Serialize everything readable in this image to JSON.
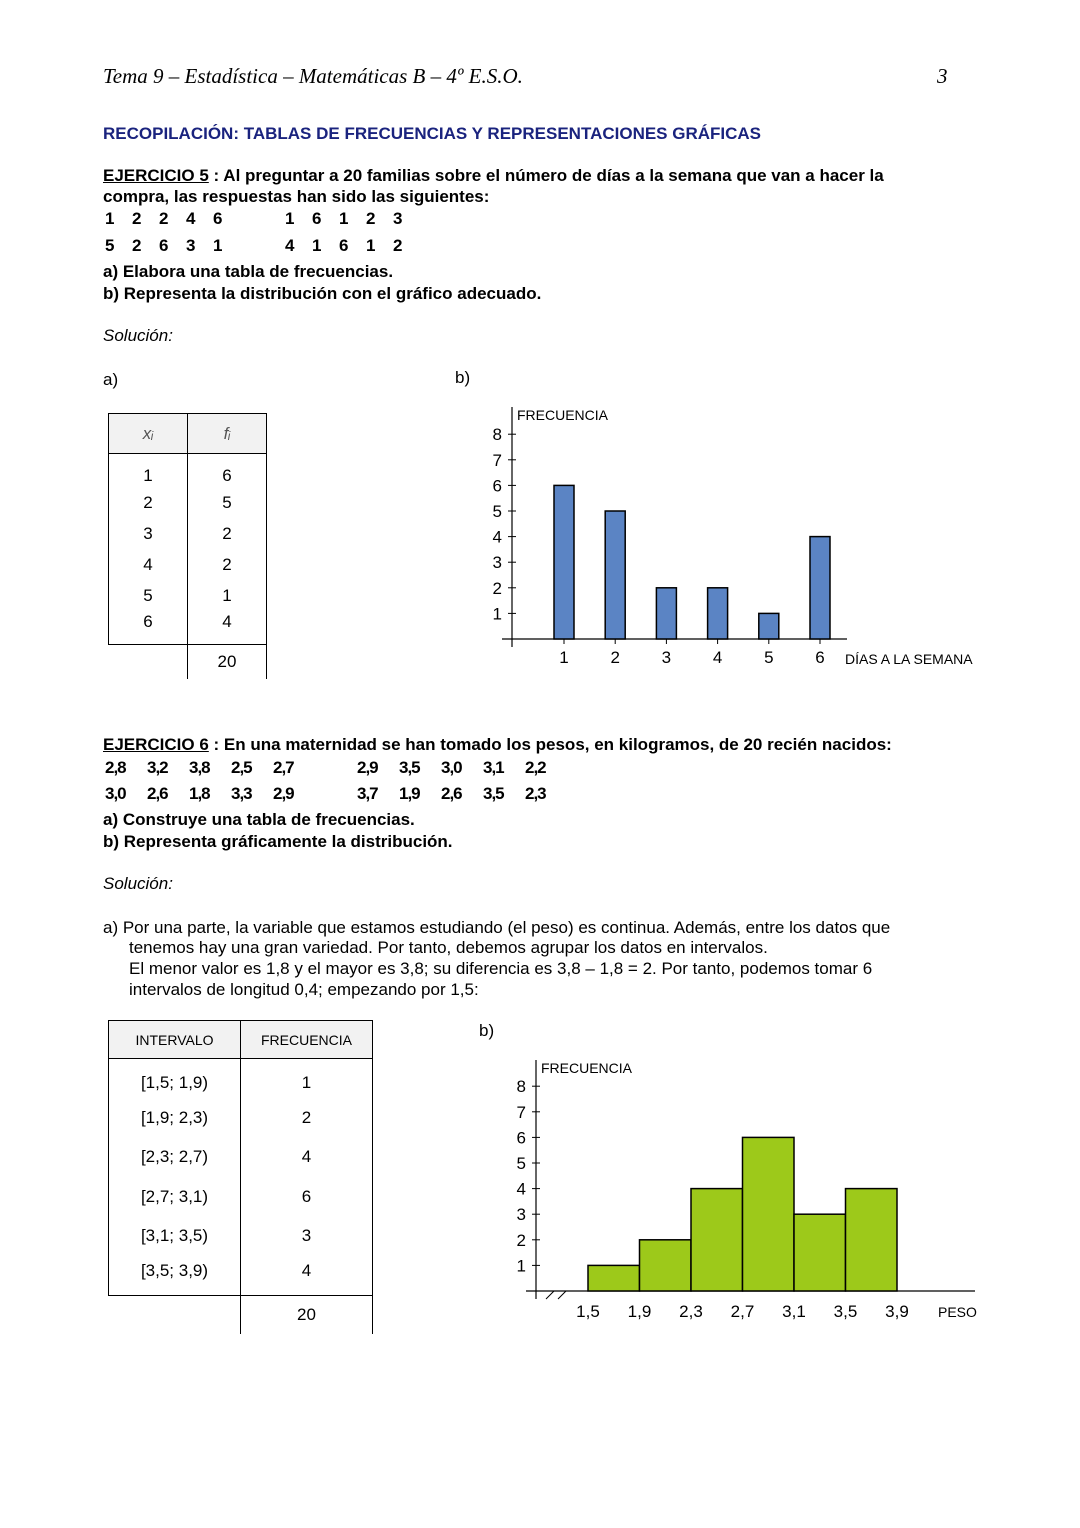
{
  "header": {
    "title": "Tema 9 – Estadística – Matemáticas B – 4º E.S.O.",
    "page_number": "3"
  },
  "section_title": "RECOPILACIÓN: TABLAS DE FRECUENCIAS Y REPRESENTACIONES GRÁFICAS",
  "ej5": {
    "label": "EJERCICIO 5",
    "statement_1": " : Al preguntar a 20 familias sobre el número de días a la semana que van a hacer la",
    "statement_2": "compra, las respuestas han sido las siguientes:",
    "data_rows": [
      [
        "1",
        "2",
        "2",
        "4",
        "6",
        "1",
        "6",
        "1",
        "2",
        "3"
      ],
      [
        "5",
        "2",
        "6",
        "3",
        "1",
        "4",
        "1",
        "6",
        "1",
        "2"
      ]
    ],
    "task_a": "a)  Elabora una tabla de frecuencias.",
    "task_b": "b)  Representa la distribución con el gráfico adecuado.",
    "solution": "Solución:",
    "part_a": "a)",
    "part_b": "b)",
    "table": {
      "col_x": "xᵢ",
      "col_f": "fᵢ",
      "rows": [
        [
          "1",
          "6"
        ],
        [
          "2",
          "5"
        ],
        [
          "3",
          "2"
        ],
        [
          "4",
          "2"
        ],
        [
          "5",
          "1"
        ],
        [
          "6",
          "4"
        ]
      ],
      "total": "20"
    }
  },
  "ej6": {
    "label": "EJERCICIO 6",
    "statement": " : En una maternidad se han tomado los pesos, en kilogramos, de 20 recién nacidos:",
    "data_rows": [
      [
        "2,8",
        "3,2",
        "3,8",
        "2,5",
        "2,7",
        "2,9",
        "3,5",
        "3,0",
        "3,1",
        "2,2"
      ],
      [
        "3,0",
        "2,6",
        "1,8",
        "3,3",
        "2,9",
        "3,7",
        "1,9",
        "2,6",
        "3,5",
        "2,3"
      ]
    ],
    "task_a": "a)  Construye una tabla de frecuencias.",
    "task_b": "b)  Representa gráficamente la distribución.",
    "solution": "Solución:",
    "explanation": [
      "a)  Por una parte, la variable que estamos estudiando (el peso) es continua. Además, entre los datos que",
      "tenemos hay una gran variedad. Por tanto, debemos agrupar los datos en intervalos.",
      "El menor valor es 1,8 y el mayor es 3,8; su diferencia es 3,8 – 1,8 = 2. Por tanto, podemos tomar 6",
      "intervalos de longitud 0,4; empezando por 1,5:"
    ],
    "part_b": "b)",
    "table": {
      "col_interval": "INTERVALO",
      "col_freq": "FRECUENCIA",
      "rows": [
        [
          "[1,5; 1,9)",
          "1"
        ],
        [
          "[1,9; 2,3)",
          "2"
        ],
        [
          "[2,3; 2,7)",
          "4"
        ],
        [
          "[2,7; 3,1)",
          "6"
        ],
        [
          "[3,1; 3,5)",
          "3"
        ],
        [
          "[3,5; 3,9)",
          "4"
        ]
      ],
      "total": "20"
    }
  },
  "chart_data": [
    {
      "type": "bar",
      "ylabel": "FRECUENCIA",
      "xlabel": "DÍAS A LA SEMANA",
      "categories": [
        "1",
        "2",
        "3",
        "4",
        "5",
        "6"
      ],
      "values": [
        6,
        5,
        2,
        2,
        1,
        4
      ],
      "yticks": [
        "1",
        "2",
        "3",
        "4",
        "5",
        "6",
        "7",
        "8"
      ],
      "ylim": [
        0,
        8
      ],
      "grid": false,
      "color": "#5b84c4"
    },
    {
      "type": "bar",
      "subtype": "histogram",
      "ylabel": "FRECUENCIA",
      "xlabel": "PESO",
      "edges": [
        "1,5",
        "1,9",
        "2,3",
        "2,7",
        "3,1",
        "3,5",
        "3,9"
      ],
      "values": [
        1,
        2,
        4,
        6,
        3,
        4
      ],
      "yticks": [
        "1",
        "2",
        "3",
        "4",
        "5",
        "6",
        "7",
        "8"
      ],
      "ylim": [
        0,
        8
      ],
      "grid": false,
      "color": "#9dc91a"
    }
  ]
}
